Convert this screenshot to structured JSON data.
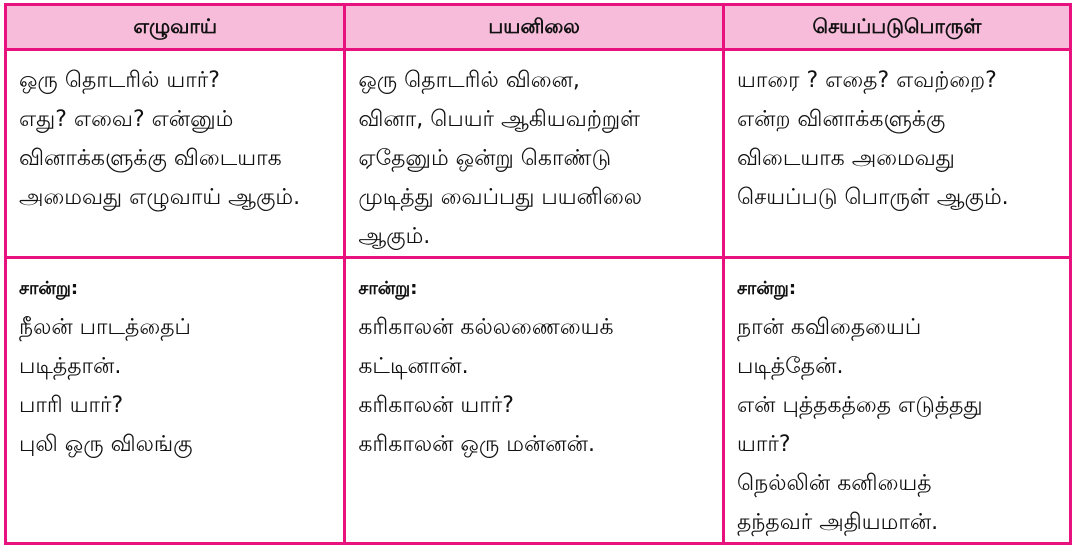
{
  "headers": [
    "எழுவாய்",
    "பயனிலை",
    "செயப்படுபொருள்"
  ],
  "definitions": [
    [
      "ஒரு தொடரில்  யார்?",
      "எது? எவை? என்னும்",
      "வினாக்களுக்கு விடையாக",
      "அமைவது எழுவாய் ஆகும்."
    ],
    [
      "ஒரு தொடரில் வினை,",
      "வினா, பெயர் ஆகியவற்றுள்",
      "ஏதேனும் ஒன்று கொண்டு",
      "முடித்து வைப்பது பயனிலை",
      "ஆகும்."
    ],
    [
      "யாரை ? எதை? எவற்றை?",
      "என்ற வினாக்களுக்கு",
      "விடையாக அமைவது",
      "செயப்படு பொருள் ஆகும்."
    ]
  ],
  "example_label": "சான்று:",
  "examples": [
    [
      "நீலன் பாடத்தைப்",
      "படித்தான்.",
      "பாரி யார்?",
      "புலி ஒரு விலங்கு"
    ],
    [
      "கரிகாலன் கல்லணையைக்",
      "கட்டினான்.",
      "கரிகாலன் யார்?",
      "கரிகாலன் ஒரு மன்னன்."
    ],
    [
      "நான் கவிதையைப்",
      "படித்தேன்.",
      "என் புத்தகத்தை எடுத்தது",
      "யார்?",
      "நெல்லின் கனியைத்",
      "தந்தவர் அதியமான்."
    ]
  ],
  "colors": {
    "border": "#e8127f",
    "header_bg": "#f6bcd9"
  }
}
